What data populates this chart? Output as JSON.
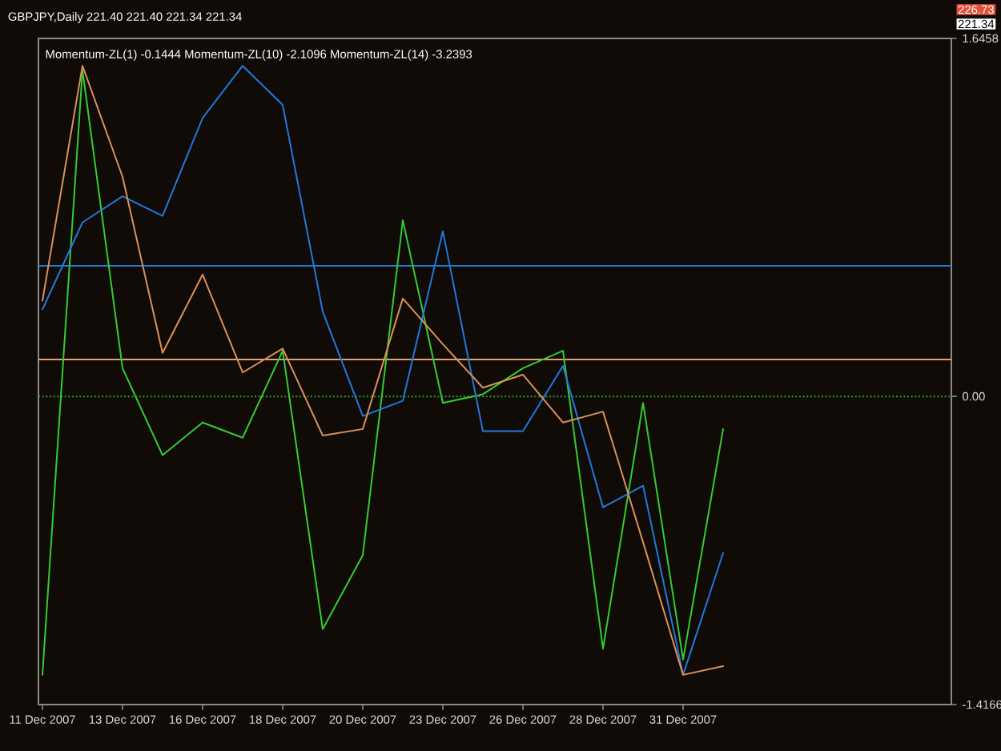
{
  "chart_data": {
    "type": "line",
    "title": "Momentum-ZL(1) -0.1444 Momentum-ZL(10) -2.1096 Momentum-ZL(14) -3.2393",
    "annotations": [
      "GBPJPY,Daily 221.40 221.40 221.34 221.34",
      "226.73",
      "221.34"
    ],
    "categories": [
      "11 Dec 2007",
      null,
      "13 Dec 2007",
      null,
      "16 Dec 2007",
      null,
      "18 Dec 2007",
      null,
      "20 Dec 2007",
      null,
      "23 Dec 2007",
      null,
      "26 Dec 2007",
      null,
      "28 Dec 2007",
      null,
      "31 Dec 2007",
      null
    ],
    "series": [
      {
        "color": "#33cc33",
        "values": [
          -1.28,
          1.5,
          0.13,
          -0.27,
          -0.12,
          -0.19,
          0.21,
          -1.07,
          -0.73,
          0.81,
          -0.03,
          0.01,
          0.13,
          0.21,
          -1.16,
          -0.03,
          -1.21,
          -0.15
        ]
      },
      {
        "color": "#2277dd",
        "values": [
          0.4,
          0.8,
          0.92,
          0.83,
          1.28,
          1.52,
          1.34,
          0.39,
          -0.09,
          -0.02,
          0.76,
          -0.16,
          -0.16,
          0.14,
          -0.51,
          -0.41,
          -1.28,
          -0.72
        ]
      },
      {
        "color": "#d9915a",
        "values": [
          0.44,
          1.52,
          1.01,
          0.2,
          0.56,
          0.11,
          0.22,
          -0.18,
          -0.15,
          0.45,
          0.24,
          0.04,
          0.1,
          -0.12,
          -0.07,
          -0.67,
          -1.28,
          -1.24
        ]
      }
    ],
    "ylim": [
      -1.4166,
      1.6458
    ],
    "yticks": [
      1.6458,
      {
        "value": 0,
        "label": "0.00"
      },
      -1.4166
    ],
    "ref_lines": [
      {
        "axis": "y",
        "value": 0.6,
        "color": "#1e78dc"
      },
      {
        "axis": "y",
        "value": 0.17,
        "color": "#e0a070"
      },
      {
        "axis": "y",
        "value": 0,
        "color": "#2e9e2e",
        "line_style": "dotted"
      }
    ],
    "line_style": "solid"
  }
}
